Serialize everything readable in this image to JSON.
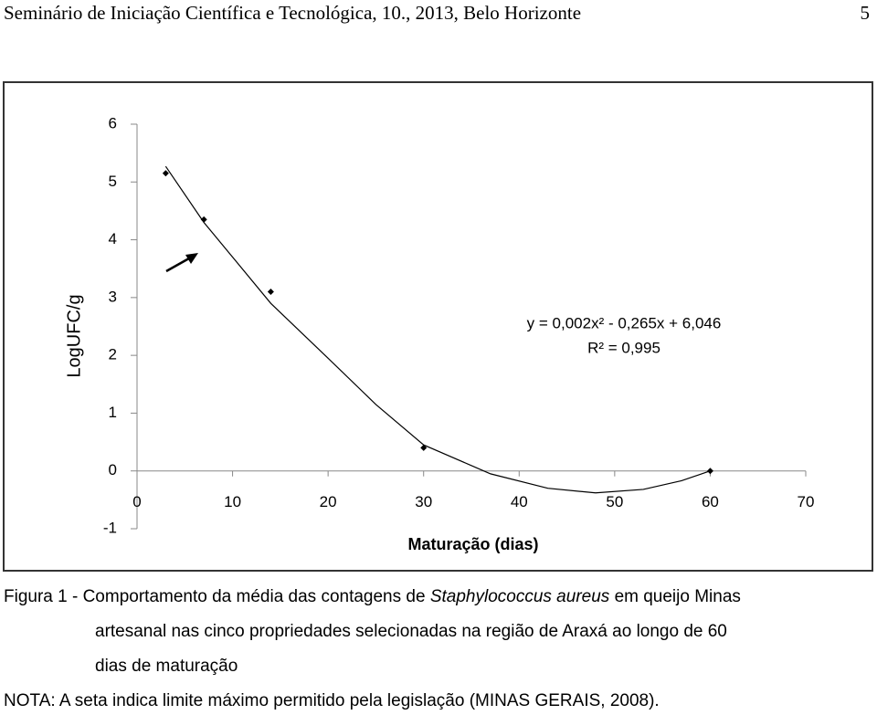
{
  "header": {
    "title": "Seminário de Iniciação Científica e Tecnológica, 10., 2013, Belo Horizonte",
    "page": "5"
  },
  "chart_data": {
    "type": "scatter",
    "y_label": "LogUFC/g",
    "x_label": "Maturação (dias)",
    "series": [
      {
        "name": "Staphylococcus aureus",
        "color": "#000000",
        "x": [
          3,
          7,
          14,
          30,
          60
        ],
        "values": [
          5.15,
          4.35,
          3.1,
          0.4,
          0.0
        ]
      }
    ],
    "trendline": {
      "color": "#000000",
      "x": [
        3,
        7,
        14,
        20,
        25,
        30,
        37,
        43,
        48,
        53,
        57,
        60
      ],
      "values": [
        5.27,
        4.3,
        2.9,
        1.95,
        1.15,
        0.45,
        -0.05,
        -0.3,
        -0.38,
        -0.32,
        -0.17,
        0.0
      ],
      "equation": "y = 0,002x² - 0,265x + 6,046",
      "r2": "R² = 0,995"
    },
    "xlim": [
      0,
      70
    ],
    "xticks": [
      0,
      10,
      20,
      30,
      40,
      50,
      60,
      70
    ],
    "ylim": [
      -1,
      6
    ],
    "yticks": [
      -1,
      0,
      1,
      2,
      3,
      4,
      5,
      6
    ]
  },
  "caption": {
    "prefix": "Figura 1 - Comportamento da média das contagens de",
    "species": "Staphylococcus aureus",
    "line1_rest": "em queijo Minas",
    "line2": "artesanal nas cinco propriedades selecionadas na região de Araxá ao longo de 60",
    "line3": "dias de maturação"
  },
  "note": "NOTA: A seta indica limite máximo permitido pela legislação (MINAS GERAIS, 2008)."
}
